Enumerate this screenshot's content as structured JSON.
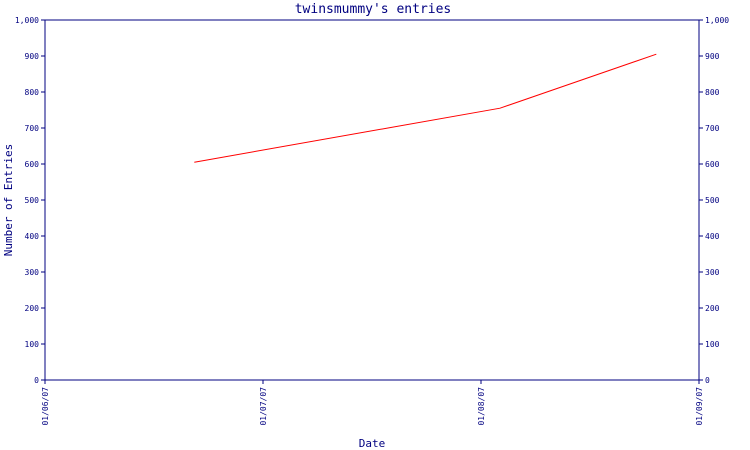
{
  "chart_data": {
    "type": "line",
    "title": "twinsmummy's entries",
    "xlabel": "Date",
    "ylabel": "Number of Entries",
    "x_ticks": [
      "01/06/07",
      "01/07/07",
      "01/08/07",
      "01/09/07"
    ],
    "y_ticks": [
      "0",
      "100",
      "200",
      "300",
      "400",
      "500",
      "600",
      "700",
      "800",
      "900",
      "1,000"
    ],
    "ylim": [
      0,
      1000
    ],
    "xlim": [
      "2007-06-01",
      "2007-09-01"
    ],
    "grid": false,
    "series": [
      {
        "color": "#ff0000",
        "x": [
          "2007-06-22",
          "2007-08-04",
          "2007-08-26"
        ],
        "y": [
          605,
          755,
          905
        ]
      }
    ]
  }
}
